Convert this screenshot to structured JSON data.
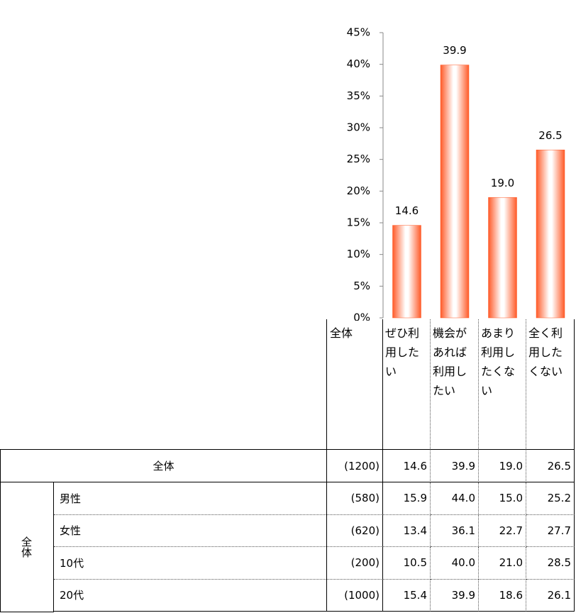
{
  "chart_data": {
    "type": "bar",
    "categories": [
      "ぜひ利用したい",
      "機会があれば利用したい",
      "あまり利用したくない",
      "全く利用したくない"
    ],
    "values": [
      14.6,
      39.9,
      19.0,
      26.5
    ],
    "value_labels": [
      "14.6",
      "39.9",
      "19.0",
      "26.5"
    ],
    "color": "#ff5a28",
    "ylim": [
      0,
      45
    ],
    "yticks": [
      {
        "value": 0,
        "label": "0%"
      },
      {
        "value": 5,
        "label": "5%"
      },
      {
        "value": 10,
        "label": "10%"
      },
      {
        "value": 15,
        "label": "15%"
      },
      {
        "value": 20,
        "label": "20%"
      },
      {
        "value": 25,
        "label": "25%"
      },
      {
        "value": 30,
        "label": "30%"
      },
      {
        "value": 35,
        "label": "35%"
      },
      {
        "value": 40,
        "label": "40%"
      },
      {
        "value": 45,
        "label": "45%"
      }
    ]
  },
  "table": {
    "header_total": "全体",
    "total_row": {
      "label": "全体",
      "n": "(1200)"
    },
    "group": "全体",
    "rows": [
      {
        "label": "男性",
        "n": "(580)",
        "values": [
          "15.9",
          "44.0",
          "15.0",
          "25.2"
        ]
      },
      {
        "label": "女性",
        "n": "(620)",
        "values": [
          "13.4",
          "36.1",
          "22.7",
          "27.7"
        ]
      },
      {
        "label": "10代",
        "n": "(200)",
        "values": [
          "10.5",
          "40.0",
          "21.0",
          "28.5"
        ]
      },
      {
        "label": "20代",
        "n": "(1000)",
        "values": [
          "15.4",
          "39.9",
          "18.6",
          "26.1"
        ]
      }
    ]
  }
}
